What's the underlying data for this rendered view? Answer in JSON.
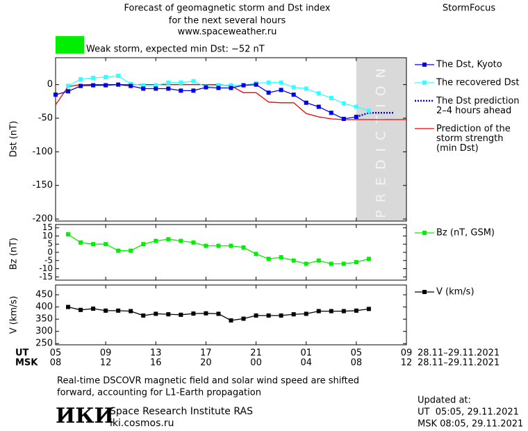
{
  "header": {
    "title_lines": [
      "Forecast of geomagnetic storm and Dst index",
      "for the next several hours",
      "www.spaceweather.ru"
    ],
    "brand": "StormFocus",
    "status": "Weak storm, expected min Dst: −52 nT",
    "status_color": "#00ee00"
  },
  "x_axis": {
    "xlim": [
      0,
      28
    ],
    "xticks": [
      {
        "value": 0,
        "label": "05"
      },
      {
        "value": 4,
        "label": "09"
      },
      {
        "value": 8,
        "label": "13"
      },
      {
        "value": 12,
        "label": "17"
      },
      {
        "value": 16,
        "label": "21"
      },
      {
        "value": 20,
        "label": "01"
      },
      {
        "value": 24,
        "label": "05"
      },
      {
        "value": 28,
        "label": "09"
      }
    ],
    "msk_ticks": [
      "08",
      "12",
      "16",
      "20",
      "00",
      "04",
      "08",
      "12"
    ],
    "ut_label": "UT",
    "msk_label": "MSK",
    "ut_range": "28.11–29.11.2021",
    "msk_range": "28.11–29.11.2021"
  },
  "chart_data": [
    {
      "type": "line",
      "ylabel": "Dst (nT)",
      "ylim": [
        -203,
        40
      ],
      "yticks": [
        -200,
        -150,
        -100,
        -50,
        0
      ],
      "prediction_span": [
        24,
        28
      ],
      "prediction_label": "PREDICTION",
      "series": [
        {
          "name": "The Dst, Kyoto",
          "color": "#0000e0",
          "style": "square",
          "x": [
            0,
            1,
            2,
            3,
            4,
            5,
            6,
            7,
            8,
            9,
            10,
            11,
            12,
            13,
            14,
            15,
            16,
            17,
            18,
            19,
            20,
            21,
            22,
            23,
            24
          ],
          "values": [
            -15,
            -10,
            -2,
            -1,
            -1,
            0,
            -2,
            -6,
            -6,
            -6,
            -9,
            -9,
            -4,
            -5,
            -5,
            -1,
            0,
            -12,
            -8,
            -15,
            -27,
            -33,
            -42,
            -51,
            -48
          ]
        },
        {
          "name": "The recovered Dst",
          "color": "#33ffff",
          "style": "square",
          "x": [
            1,
            2,
            3,
            4,
            5,
            6,
            7,
            8,
            9,
            10,
            11,
            12,
            13,
            14,
            15,
            16,
            17,
            18,
            19,
            20,
            21,
            22,
            23,
            24,
            25
          ],
          "values": [
            -2,
            8,
            10,
            11,
            13,
            1,
            -1,
            -1,
            3,
            3,
            5,
            -3,
            -1,
            -1,
            -1,
            2,
            3,
            3,
            -4,
            -6,
            -13,
            -20,
            -28,
            -33,
            -39
          ]
        },
        {
          "name": "The Dst prediction\n2–4 hours ahead",
          "color": "#0000e0",
          "style": "dotted",
          "x": [
            24,
            25,
            26,
            27
          ],
          "values": [
            -48,
            -42,
            -42,
            -42
          ]
        },
        {
          "name": "Prediction of the\nstorm strength\n(min Dst)",
          "color": "#ee0000",
          "style": "plain",
          "x": [
            0,
            1,
            2,
            3,
            4,
            5,
            6,
            7,
            8,
            9,
            10,
            11,
            12,
            13,
            14,
            15,
            16,
            17,
            18,
            19,
            20,
            21,
            22,
            23,
            24,
            25,
            26,
            27,
            28
          ],
          "values": [
            -30,
            -3,
            0,
            0,
            0,
            0,
            0,
            0,
            0,
            0,
            0,
            0,
            0,
            0,
            -2,
            -12,
            -12,
            -26,
            -27,
            -27,
            -43,
            -48,
            -51,
            -52,
            -52,
            -52,
            -52,
            -52,
            -52
          ]
        }
      ]
    },
    {
      "type": "line",
      "ylabel": "Bz (nT)",
      "ylim": [
        -17,
        17
      ],
      "yticks": [
        -15,
        -10,
        -5,
        0,
        5,
        10,
        15
      ],
      "series": [
        {
          "name": "Bz (nT, GSM)",
          "color": "#00ee00",
          "style": "square",
          "x": [
            1,
            2,
            3,
            4,
            5,
            6,
            7,
            8,
            9,
            10,
            11,
            12,
            13,
            14,
            15,
            16,
            17,
            18,
            19,
            20,
            21,
            22,
            23,
            24,
            25
          ],
          "values": [
            11,
            6,
            5,
            5,
            1,
            1,
            5,
            7,
            8,
            7,
            6,
            4,
            4,
            4,
            3,
            -1,
            -4,
            -3,
            -5,
            -7,
            -5,
            -7,
            -7,
            -6,
            -4
          ]
        }
      ]
    },
    {
      "type": "line",
      "ylabel": "V (km/s)",
      "ylim": [
        245,
        490
      ],
      "yticks": [
        250,
        300,
        350,
        400,
        450
      ],
      "series": [
        {
          "name": "V (km/s)",
          "color": "#000000",
          "style": "square",
          "x": [
            1,
            2,
            3,
            4,
            5,
            6,
            7,
            8,
            9,
            10,
            11,
            12,
            13,
            14,
            15,
            16,
            17,
            18,
            19,
            20,
            21,
            22,
            23,
            24,
            25
          ],
          "values": [
            400,
            388,
            393,
            385,
            385,
            383,
            365,
            372,
            370,
            368,
            373,
            374,
            372,
            345,
            352,
            365,
            365,
            365,
            370,
            372,
            383,
            383,
            383,
            385,
            392
          ]
        }
      ]
    }
  ],
  "footer": {
    "note_lines": [
      "Real-time DSCOVR magnetic field and solar wind speed are shifted",
      "forward, accounting for L1-Earth propagation"
    ],
    "logo": "ИКИ",
    "institute": "Space Research Institute RAS",
    "site": "iki.cosmos.ru",
    "updated_title": "Updated at:",
    "updated_ut": "UT  05:05, 29.11.2021",
    "updated_msk": "MSK 08:05, 29.11.2021"
  }
}
